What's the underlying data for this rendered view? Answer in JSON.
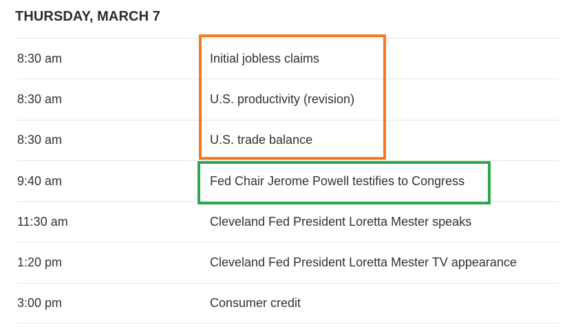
{
  "header": {
    "title": "THURSDAY, MARCH 7"
  },
  "schedule": {
    "rows": [
      {
        "time": "8:30 am",
        "event": "Initial jobless claims"
      },
      {
        "time": "8:30 am",
        "event": "U.S. productivity (revision)"
      },
      {
        "time": "8:30 am",
        "event": "U.S. trade balance"
      },
      {
        "time": "9:40 am",
        "event": "Fed Chair Jerome Powell testifies to Congress"
      },
      {
        "time": "11:30 am",
        "event": "Cleveland Fed President Loretta Mester speaks"
      },
      {
        "time": "1:20 pm",
        "event": "Cleveland Fed President Loretta Mester TV appearance"
      },
      {
        "time": "3:00 pm",
        "event": "Consumer credit"
      }
    ]
  },
  "annotations": {
    "orange_box": {
      "color": "#f4791f",
      "highlighted_events": [
        "Initial jobless claims",
        "U.S. productivity (revision)",
        "U.S. trade balance"
      ]
    },
    "green_box": {
      "color": "#2ba84a",
      "highlighted_events": [
        "Fed Chair Jerome Powell testifies to Congress"
      ]
    }
  },
  "colors": {
    "row_divider": "#e6e6e6",
    "text": "#313131",
    "heading_text": "#2b2b2b",
    "background": "#ffffff"
  }
}
